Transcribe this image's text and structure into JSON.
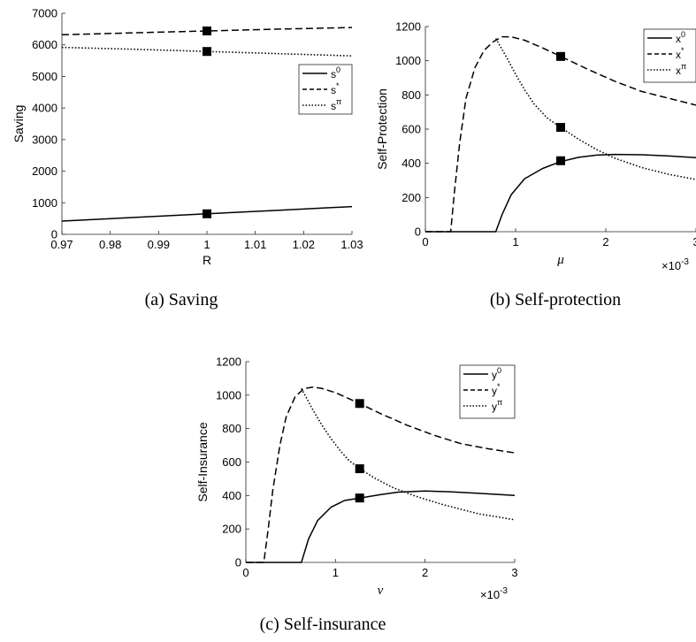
{
  "chart_data": [
    {
      "id": "a",
      "type": "line",
      "caption": "(a)  Saving",
      "ylabel": "Saving",
      "xlabel": "R",
      "xlim": [
        0.97,
        1.03
      ],
      "ylim": [
        0,
        7000
      ],
      "xticks": [
        0.97,
        0.98,
        0.99,
        1,
        1.01,
        1.02,
        1.03
      ],
      "xtick_labels": [
        "0.97",
        "0.98",
        "0.99",
        "1",
        "1.01",
        "1.02",
        "1.03"
      ],
      "yticks": [
        0,
        1000,
        2000,
        3000,
        4000,
        5000,
        6000,
        7000
      ],
      "ytick_labels": [
        "0",
        "1000",
        "2000",
        "3000",
        "4000",
        "5000",
        "6000",
        "7000"
      ],
      "grid": false,
      "legend": {
        "position": "right",
        "entries": [
          {
            "base": "s",
            "sup": "0",
            "style": "solid"
          },
          {
            "base": "s",
            "sup": "*",
            "style": "dashed"
          },
          {
            "base": "s",
            "sup": "π",
            "style": "dotted"
          }
        ]
      },
      "series": [
        {
          "style": "solid",
          "x": [
            0.97,
            0.985,
            1,
            1.015,
            1.03
          ],
          "y": [
            420,
            535,
            650,
            765,
            880
          ]
        },
        {
          "style": "dashed",
          "x": [
            0.97,
            0.985,
            1,
            1.015,
            1.03
          ],
          "y": [
            6320,
            6380,
            6440,
            6500,
            6550
          ]
        },
        {
          "style": "dotted",
          "x": [
            0.97,
            0.985,
            1,
            1.015,
            1.03
          ],
          "y": [
            5920,
            5860,
            5790,
            5720,
            5650
          ]
        }
      ],
      "markers": [
        {
          "x": 1,
          "y": 650
        },
        {
          "x": 1,
          "y": 6440
        },
        {
          "x": 1,
          "y": 5790
        }
      ]
    },
    {
      "id": "b",
      "type": "line",
      "caption": "(b)  Self-protection",
      "ylabel": "Self-Protection",
      "xlabel": "μ",
      "xlim": [
        0,
        3
      ],
      "ylim": [
        0,
        1200
      ],
      "exponent_label": {
        "base": "×10",
        "exp": "-3"
      },
      "xticks": [
        0,
        1,
        2,
        3
      ],
      "xtick_labels": [
        "0",
        "1",
        "2",
        "3"
      ],
      "yticks": [
        0,
        200,
        400,
        600,
        800,
        1000,
        1200
      ],
      "ytick_labels": [
        "0",
        "200",
        "400",
        "600",
        "800",
        "1000",
        "1200"
      ],
      "grid": false,
      "legend": {
        "position": "top-right",
        "entries": [
          {
            "base": "x",
            "sup": "0",
            "style": "solid"
          },
          {
            "base": "x",
            "sup": "*",
            "style": "dashed"
          },
          {
            "base": "x",
            "sup": "π",
            "style": "dotted"
          }
        ]
      },
      "series": [
        {
          "style": "solid",
          "x": [
            0,
            0.78,
            0.85,
            0.95,
            1.1,
            1.3,
            1.5,
            1.7,
            1.9,
            2.1,
            2.4,
            2.7,
            3.0
          ],
          "y": [
            0,
            0,
            100,
            215,
            310,
            370,
            410,
            435,
            448,
            452,
            450,
            443,
            433
          ]
        },
        {
          "style": "dashed",
          "x": [
            0,
            0.28,
            0.32,
            0.38,
            0.45,
            0.55,
            0.65,
            0.75,
            0.85,
            0.95,
            1.1,
            1.3,
            1.5,
            1.8,
            2.1,
            2.4,
            2.7,
            3.0
          ],
          "y": [
            0,
            0,
            220,
            520,
            780,
            960,
            1060,
            1110,
            1140,
            1140,
            1120,
            1075,
            1025,
            950,
            880,
            820,
            780,
            740
          ]
        },
        {
          "style": "dotted",
          "x": [
            0.78,
            0.9,
            1.0,
            1.1,
            1.2,
            1.35,
            1.5,
            1.7,
            1.9,
            2.1,
            2.4,
            2.7,
            3.0
          ],
          "y": [
            1130,
            1020,
            920,
            830,
            750,
            665,
            610,
            540,
            480,
            430,
            375,
            335,
            305
          ]
        }
      ],
      "markers": [
        {
          "x": 1.5,
          "y": 1025
        },
        {
          "x": 1.5,
          "y": 610
        },
        {
          "x": 1.5,
          "y": 415
        }
      ]
    },
    {
      "id": "c",
      "type": "line",
      "caption": "(c)  Self-insurance",
      "ylabel": "Self-Insurance",
      "xlabel": "ν",
      "xlim": [
        0,
        3
      ],
      "ylim": [
        0,
        1200
      ],
      "exponent_label": {
        "base": "×10",
        "exp": "-3"
      },
      "xticks": [
        0,
        1,
        2,
        3
      ],
      "xtick_labels": [
        "0",
        "1",
        "2",
        "3"
      ],
      "yticks": [
        0,
        200,
        400,
        600,
        800,
        1000,
        1200
      ],
      "ytick_labels": [
        "0",
        "200",
        "400",
        "600",
        "800",
        "1000",
        "1200"
      ],
      "grid": false,
      "legend": {
        "position": "top-right",
        "entries": [
          {
            "base": "y",
            "sup": "0",
            "style": "solid"
          },
          {
            "base": "y",
            "sup": "*",
            "style": "dashed"
          },
          {
            "base": "y",
            "sup": "π",
            "style": "dotted"
          }
        ]
      },
      "series": [
        {
          "style": "solid",
          "x": [
            0,
            0.62,
            0.7,
            0.8,
            0.95,
            1.1,
            1.27,
            1.5,
            1.7,
            2.0,
            2.3,
            2.6,
            3.0
          ],
          "y": [
            0,
            0,
            140,
            250,
            330,
            370,
            385,
            405,
            420,
            427,
            422,
            413,
            400
          ]
        },
        {
          "style": "dashed",
          "x": [
            0,
            0.2,
            0.25,
            0.3,
            0.38,
            0.45,
            0.55,
            0.65,
            0.75,
            0.85,
            1.0,
            1.27,
            1.5,
            1.8,
            2.1,
            2.4,
            2.7,
            3.0
          ],
          "y": [
            0,
            0,
            200,
            430,
            700,
            870,
            990,
            1040,
            1048,
            1040,
            1015,
            950,
            890,
            820,
            760,
            710,
            680,
            655
          ]
        },
        {
          "style": "dotted",
          "x": [
            0.62,
            0.75,
            0.85,
            0.95,
            1.05,
            1.15,
            1.27,
            1.45,
            1.65,
            1.9,
            2.2,
            2.6,
            3.0
          ],
          "y": [
            1040,
            910,
            820,
            740,
            670,
            610,
            560,
            500,
            445,
            395,
            345,
            290,
            255
          ]
        }
      ],
      "markers": [
        {
          "x": 1.27,
          "y": 950
        },
        {
          "x": 1.27,
          "y": 560
        },
        {
          "x": 1.27,
          "y": 385
        }
      ]
    }
  ]
}
